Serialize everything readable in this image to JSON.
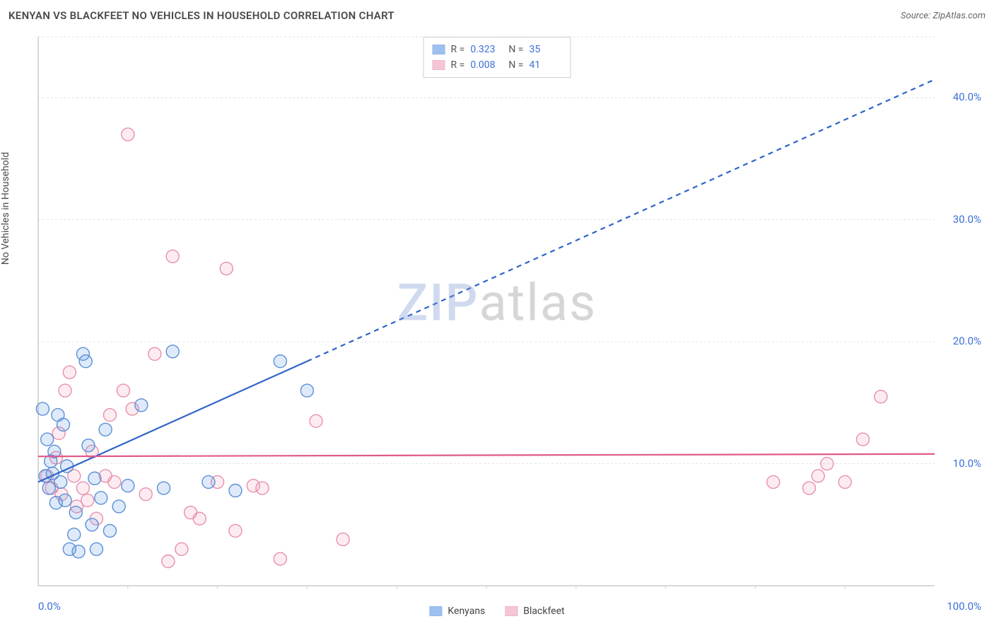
{
  "title": "KENYAN VS BLACKFEET NO VEHICLES IN HOUSEHOLD CORRELATION CHART",
  "source_label": "Source: ",
  "source_name": "ZipAtlas.com",
  "y_axis_label": "No Vehicles in Household",
  "watermark_a": "ZIP",
  "watermark_b": "atlas",
  "chart": {
    "type": "scatter",
    "xlim": [
      0,
      100
    ],
    "ylim": [
      0,
      45
    ],
    "x_tick_step": 10,
    "y_ticks": [
      10,
      20,
      30,
      40
    ],
    "y_tick_labels": [
      "10.0%",
      "20.0%",
      "30.0%",
      "40.0%"
    ],
    "x_min_label": "0.0%",
    "x_max_label": "100.0%",
    "background_color": "#ffffff",
    "grid_color": "#e2e2e2",
    "grid_dash": "3,3",
    "axis_color": "#cccccc",
    "marker_radius": 9,
    "marker_stroke_width": 1.4,
    "marker_fill_opacity": 0.22,
    "series": [
      {
        "name": "Kenyans",
        "color": "#6aa0e8",
        "stroke": "#5b8fd6",
        "r_value": "0.323",
        "n_value": "35",
        "regression": {
          "x1": 0,
          "y1": 8.5,
          "x2": 100,
          "y2": 41.5,
          "solid_until_x": 30,
          "dash": "7,6",
          "width": 2.2,
          "color": "#2f63c9"
        },
        "points": [
          [
            0.5,
            14.5
          ],
          [
            0.8,
            9.0
          ],
          [
            1.0,
            12.0
          ],
          [
            1.2,
            8.0
          ],
          [
            1.4,
            10.2
          ],
          [
            1.6,
            9.2
          ],
          [
            1.8,
            11.0
          ],
          [
            2.0,
            6.8
          ],
          [
            2.2,
            14.0
          ],
          [
            2.5,
            8.5
          ],
          [
            2.8,
            13.2
          ],
          [
            3.0,
            7.0
          ],
          [
            3.2,
            9.8
          ],
          [
            3.5,
            3.0
          ],
          [
            4.0,
            4.2
          ],
          [
            4.2,
            6.0
          ],
          [
            4.5,
            2.8
          ],
          [
            5.0,
            19.0
          ],
          [
            5.3,
            18.4
          ],
          [
            5.6,
            11.5
          ],
          [
            6.0,
            5.0
          ],
          [
            6.3,
            8.8
          ],
          [
            6.5,
            3.0
          ],
          [
            7.0,
            7.2
          ],
          [
            7.5,
            12.8
          ],
          [
            8.0,
            4.5
          ],
          [
            9.0,
            6.5
          ],
          [
            10.0,
            8.2
          ],
          [
            11.5,
            14.8
          ],
          [
            14.0,
            8.0
          ],
          [
            15.0,
            19.2
          ],
          [
            19.0,
            8.5
          ],
          [
            22.0,
            7.8
          ],
          [
            27.0,
            18.4
          ],
          [
            30.0,
            16.0
          ]
        ]
      },
      {
        "name": "Blackfeet",
        "color": "#f0a8bd",
        "stroke": "#e98fab",
        "r_value": "0.008",
        "n_value": "41",
        "regression": {
          "x1": 0,
          "y1": 10.6,
          "x2": 100,
          "y2": 10.8,
          "solid_until_x": 100,
          "dash": "",
          "width": 2.2,
          "color": "#e05a88"
        },
        "points": [
          [
            1.0,
            9.0
          ],
          [
            1.5,
            8.0
          ],
          [
            2.0,
            10.5
          ],
          [
            2.3,
            12.5
          ],
          [
            2.6,
            7.5
          ],
          [
            3.0,
            16.0
          ],
          [
            3.5,
            17.5
          ],
          [
            4.0,
            9.0
          ],
          [
            4.3,
            6.5
          ],
          [
            5.0,
            8.0
          ],
          [
            5.5,
            7.0
          ],
          [
            6.0,
            11.0
          ],
          [
            6.5,
            5.5
          ],
          [
            7.5,
            9.0
          ],
          [
            8.0,
            14.0
          ],
          [
            8.5,
            8.5
          ],
          [
            9.5,
            16.0
          ],
          [
            10.0,
            37.0
          ],
          [
            10.5,
            14.5
          ],
          [
            12.0,
            7.5
          ],
          [
            13.0,
            19.0
          ],
          [
            14.5,
            2.0
          ],
          [
            15.0,
            27.0
          ],
          [
            16.0,
            3.0
          ],
          [
            17.0,
            6.0
          ],
          [
            18.0,
            5.5
          ],
          [
            20.0,
            8.5
          ],
          [
            21.0,
            26.0
          ],
          [
            22.0,
            4.5
          ],
          [
            24.0,
            8.2
          ],
          [
            25.0,
            8.0
          ],
          [
            27.0,
            2.2
          ],
          [
            31.0,
            13.5
          ],
          [
            34.0,
            3.8
          ],
          [
            86.0,
            8.0
          ],
          [
            87.0,
            9.0
          ],
          [
            88.0,
            10.0
          ],
          [
            90.0,
            8.5
          ],
          [
            92.0,
            12.0
          ],
          [
            94.0,
            15.5
          ],
          [
            82.0,
            8.5
          ]
        ]
      }
    ]
  },
  "stats_box": {
    "r_label": "R  =",
    "n_label": "N  ="
  },
  "legend": {
    "series1": "Kenyans",
    "series2": "Blackfeet"
  }
}
